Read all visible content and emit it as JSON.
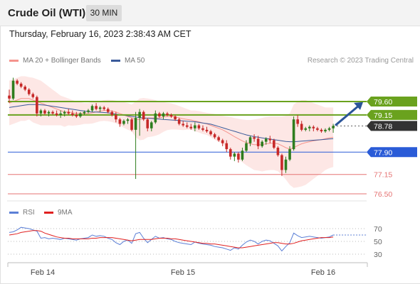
{
  "header": {
    "title": "Crude Oil (WTI)",
    "interval": "30 MIN"
  },
  "timestamp": "Thursday, February 16, 2023 2:38:43 AM CET",
  "credit": "Research © 2023 Trading Central",
  "legend": {
    "main": [
      {
        "label": "MA 20 + Bollinger Bands",
        "color": "#f5948d"
      },
      {
        "label": "MA 50",
        "color": "#3a5a9a"
      }
    ],
    "rsi": [
      {
        "label": "RSI",
        "color": "#5b7fd6"
      },
      {
        "label": "9MA",
        "color": "#e02020"
      }
    ]
  },
  "colors": {
    "up": "#2e7d1e",
    "down": "#c62828",
    "resistance": "#6aa21e",
    "support": "#2a5bd7",
    "target": "#e57373",
    "last": "#333333",
    "arrow": "#2a5499"
  },
  "chart_data": [
    {
      "type": "candlestick",
      "instrument": "Crude Oil (WTI)",
      "interval": "30 MIN",
      "x_ticks": [
        "Feb 14",
        "Feb 15",
        "Feb 16"
      ],
      "ylim": [
        76.3,
        80.0
      ],
      "price_levels": [
        {
          "value": 79.6,
          "label": "79.60",
          "kind": "resistance"
        },
        {
          "value": 79.15,
          "label": "79.15",
          "kind": "resistance"
        },
        {
          "value": 78.78,
          "label": "78.78",
          "kind": "last"
        },
        {
          "value": 77.9,
          "label": "77.90",
          "kind": "support"
        },
        {
          "value": 77.15,
          "label": "77.15",
          "kind": "target"
        },
        {
          "value": 76.5,
          "label": "76.50",
          "kind": "target"
        }
      ],
      "ohlc": [
        [
          79.8,
          80.0,
          79.55,
          79.7
        ],
        [
          79.7,
          80.4,
          79.65,
          80.3
        ],
        [
          80.3,
          80.35,
          80.15,
          80.2
        ],
        [
          80.2,
          80.25,
          80.05,
          80.1
        ],
        [
          80.1,
          80.15,
          79.95,
          80.0
        ],
        [
          80.0,
          80.05,
          79.8,
          79.85
        ],
        [
          79.85,
          79.9,
          79.7,
          79.75
        ],
        [
          79.75,
          79.8,
          79.1,
          79.2
        ],
        [
          79.2,
          79.35,
          79.1,
          79.3
        ],
        [
          79.3,
          79.35,
          79.15,
          79.2
        ],
        [
          79.2,
          79.3,
          79.1,
          79.25
        ],
        [
          79.25,
          79.3,
          79.15,
          79.2
        ],
        [
          79.2,
          79.3,
          79.1,
          79.15
        ],
        [
          79.15,
          79.3,
          79.05,
          79.2
        ],
        [
          79.2,
          79.3,
          79.1,
          79.25
        ],
        [
          79.25,
          79.35,
          79.15,
          79.2
        ],
        [
          79.2,
          79.3,
          79.1,
          79.15
        ],
        [
          79.15,
          79.25,
          79.05,
          79.1
        ],
        [
          79.1,
          79.25,
          79.05,
          79.2
        ],
        [
          79.2,
          79.3,
          79.15,
          79.25
        ],
        [
          79.25,
          79.35,
          79.2,
          79.3
        ],
        [
          79.3,
          79.5,
          79.25,
          79.45
        ],
        [
          79.45,
          79.55,
          79.3,
          79.35
        ],
        [
          79.35,
          79.45,
          79.25,
          79.4
        ],
        [
          79.4,
          79.45,
          79.3,
          79.35
        ],
        [
          79.35,
          79.4,
          79.2,
          79.25
        ],
        [
          79.25,
          79.3,
          79.1,
          79.15
        ],
        [
          79.15,
          79.25,
          78.9,
          79.0
        ],
        [
          79.0,
          79.05,
          78.75,
          78.85
        ],
        [
          78.85,
          79.0,
          78.8,
          78.95
        ],
        [
          78.95,
          79.05,
          78.85,
          79.0
        ],
        [
          79.0,
          79.05,
          78.6,
          78.65
        ],
        [
          78.65,
          79.25,
          77.0,
          79.05
        ],
        [
          79.05,
          79.35,
          78.45,
          79.25
        ],
        [
          79.25,
          79.3,
          78.95,
          79.0
        ],
        [
          79.0,
          79.05,
          78.6,
          78.7
        ],
        [
          78.7,
          78.95,
          78.6,
          78.9
        ],
        [
          78.9,
          79.3,
          78.85,
          79.2
        ],
        [
          79.2,
          79.25,
          79.05,
          79.1
        ],
        [
          79.1,
          79.25,
          79.0,
          79.2
        ],
        [
          79.2,
          79.25,
          79.1,
          79.15
        ],
        [
          79.15,
          79.2,
          79.05,
          79.1
        ],
        [
          79.1,
          79.15,
          78.95,
          79.0
        ],
        [
          79.0,
          79.05,
          78.8,
          78.85
        ],
        [
          78.85,
          78.95,
          78.75,
          78.8
        ],
        [
          78.8,
          78.9,
          78.7,
          78.75
        ],
        [
          78.75,
          78.85,
          78.65,
          78.7
        ],
        [
          78.7,
          78.9,
          78.6,
          78.8
        ],
        [
          78.8,
          78.85,
          78.65,
          78.7
        ],
        [
          78.7,
          78.8,
          78.6,
          78.65
        ],
        [
          78.65,
          78.75,
          78.55,
          78.6
        ],
        [
          78.6,
          78.65,
          78.45,
          78.5
        ],
        [
          78.5,
          78.55,
          78.35,
          78.4
        ],
        [
          78.4,
          78.45,
          78.25,
          78.3
        ],
        [
          78.3,
          78.35,
          78.1,
          78.2
        ],
        [
          78.2,
          78.3,
          77.9,
          78.0
        ],
        [
          78.0,
          78.05,
          77.65,
          77.75
        ],
        [
          77.75,
          77.9,
          77.6,
          77.85
        ],
        [
          77.85,
          77.9,
          77.55,
          77.65
        ],
        [
          77.65,
          78.05,
          77.6,
          77.95
        ],
        [
          77.95,
          78.3,
          77.9,
          78.2
        ],
        [
          78.2,
          78.45,
          78.1,
          78.4
        ],
        [
          78.4,
          78.5,
          78.25,
          78.35
        ],
        [
          78.35,
          78.45,
          78.0,
          78.1
        ],
        [
          78.1,
          78.3,
          78.05,
          78.25
        ],
        [
          78.25,
          78.4,
          78.15,
          78.35
        ],
        [
          78.35,
          78.45,
          78.2,
          78.3
        ],
        [
          78.3,
          78.35,
          78.0,
          78.05
        ],
        [
          78.05,
          78.1,
          77.75,
          77.8
        ],
        [
          77.8,
          77.85,
          77.1,
          77.3
        ],
        [
          77.3,
          77.75,
          77.2,
          77.65
        ],
        [
          77.65,
          78.1,
          77.6,
          78.0
        ],
        [
          78.0,
          79.1,
          77.95,
          79.0
        ],
        [
          79.0,
          79.15,
          78.75,
          78.85
        ],
        [
          78.85,
          78.95,
          78.6,
          78.65
        ],
        [
          78.65,
          78.75,
          78.6,
          78.7
        ],
        [
          78.7,
          78.8,
          78.6,
          78.75
        ],
        [
          78.75,
          78.8,
          78.6,
          78.7
        ],
        [
          78.7,
          78.75,
          78.6,
          78.65
        ],
        [
          78.65,
          78.7,
          78.55,
          78.6
        ],
        [
          78.6,
          78.7,
          78.55,
          78.65
        ],
        [
          78.65,
          78.75,
          78.6,
          78.7
        ],
        [
          78.7,
          78.85,
          78.55,
          78.78
        ]
      ],
      "ma20": [
        79.55,
        79.6,
        79.65,
        79.7,
        79.7,
        79.7,
        79.65,
        79.6,
        79.55,
        79.5,
        79.45,
        79.4,
        79.35,
        79.3,
        79.25,
        79.25,
        79.22,
        79.2,
        79.2,
        79.2,
        79.2,
        79.22,
        79.25,
        79.28,
        79.3,
        79.3,
        79.28,
        79.25,
        79.2,
        79.15,
        79.1,
        79.05,
        79.0,
        79.0,
        79.02,
        79.05,
        79.05,
        79.05,
        79.05,
        79.08,
        79.1,
        79.1,
        79.08,
        79.05,
        79.02,
        79.0,
        78.98,
        78.95,
        78.92,
        78.88,
        78.85,
        78.8,
        78.75,
        78.7,
        78.65,
        78.58,
        78.5,
        78.42,
        78.35,
        78.28,
        78.22,
        78.18,
        78.15,
        78.15,
        78.15,
        78.18,
        78.2,
        78.2,
        78.18,
        78.12,
        78.05,
        78.0,
        78.05,
        78.12,
        78.18,
        78.22,
        78.25,
        78.28,
        78.3,
        78.32,
        78.35,
        78.38,
        78.4
      ],
      "ma50": [
        79.4,
        79.42,
        79.44,
        79.46,
        79.48,
        79.5,
        79.5,
        79.5,
        79.49,
        79.48,
        79.46,
        79.44,
        79.42,
        79.4,
        79.38,
        79.36,
        79.34,
        79.32,
        79.3,
        79.28,
        79.26,
        79.25,
        79.25,
        79.24,
        79.23,
        79.22,
        79.2,
        79.18,
        79.16,
        79.14,
        79.12,
        79.1,
        79.08,
        79.06,
        79.05,
        79.04,
        79.03,
        79.02,
        79.01,
        79.0,
        78.99,
        78.98,
        78.97,
        78.96,
        78.95,
        78.94,
        78.93,
        78.92,
        78.9,
        78.88,
        78.86,
        78.84,
        78.8,
        78.76,
        78.72,
        78.68,
        78.64,
        78.6,
        78.56,
        78.52,
        78.48,
        78.45,
        78.42,
        78.4,
        78.38,
        78.36,
        78.34,
        78.32,
        78.3,
        78.28,
        78.26,
        78.25,
        78.25,
        78.26,
        78.27,
        78.28,
        78.29,
        78.3,
        78.31,
        78.32,
        78.33,
        78.34,
        78.35
      ],
      "bb_upper": [
        80.3,
        80.35,
        80.4,
        80.45,
        80.45,
        80.42,
        80.4,
        80.35,
        80.3,
        80.2,
        80.1,
        80.0,
        79.9,
        79.8,
        79.75,
        79.7,
        79.65,
        79.6,
        79.58,
        79.55,
        79.55,
        79.58,
        79.6,
        79.62,
        79.65,
        79.66,
        79.65,
        79.63,
        79.6,
        79.58,
        79.55,
        79.5,
        79.6,
        79.7,
        79.72,
        79.7,
        79.68,
        79.65,
        79.6,
        79.58,
        79.56,
        79.54,
        79.5,
        79.45,
        79.4,
        79.35,
        79.3,
        79.3,
        79.28,
        79.25,
        79.22,
        79.2,
        79.18,
        79.15,
        79.12,
        79.1,
        79.08,
        79.05,
        79.02,
        79.0,
        78.98,
        78.98,
        79.0,
        79.02,
        79.05,
        79.08,
        79.1,
        79.1,
        79.1,
        79.1,
        79.12,
        79.2,
        79.5,
        79.6,
        79.65,
        79.65,
        79.6,
        79.55,
        79.5,
        79.45,
        79.4,
        79.4,
        79.4
      ],
      "bb_lower": [
        78.8,
        78.85,
        78.9,
        78.95,
        78.95,
        79.0,
        78.9,
        78.85,
        78.8,
        78.8,
        78.8,
        78.8,
        78.8,
        78.8,
        78.75,
        78.8,
        78.79,
        78.8,
        78.82,
        78.85,
        78.85,
        78.86,
        78.9,
        78.94,
        78.95,
        78.94,
        78.91,
        78.87,
        78.8,
        78.72,
        78.65,
        78.6,
        78.4,
        78.3,
        78.32,
        78.4,
        78.42,
        78.45,
        78.5,
        78.58,
        78.64,
        78.66,
        78.66,
        78.65,
        78.64,
        78.65,
        78.66,
        78.6,
        78.56,
        78.51,
        78.48,
        78.4,
        78.32,
        78.25,
        78.18,
        78.06,
        77.92,
        77.79,
        77.68,
        77.56,
        77.46,
        77.38,
        77.3,
        77.28,
        77.25,
        77.28,
        77.3,
        77.3,
        77.26,
        77.14,
        76.98,
        76.8,
        76.7,
        76.72,
        76.75,
        76.8,
        76.9,
        77.0,
        77.1,
        77.19,
        77.3,
        77.36,
        77.4
      ]
    },
    {
      "type": "line",
      "title": "RSI",
      "ylim": [
        20,
        80
      ],
      "y_ticks": [
        30,
        50,
        70
      ],
      "series": [
        {
          "name": "RSI",
          "values": [
            64,
            65,
            68,
            72,
            71,
            70,
            68,
            66,
            55,
            56,
            54,
            55,
            54,
            53,
            55,
            54,
            53,
            52,
            54,
            55,
            56,
            60,
            58,
            59,
            58,
            55,
            53,
            48,
            45,
            50,
            52,
            47,
            62,
            64,
            55,
            48,
            53,
            58,
            55,
            56,
            54,
            53,
            50,
            48,
            47,
            46,
            45,
            49,
            47,
            46,
            45,
            44,
            42,
            41,
            40,
            38,
            36,
            40,
            38,
            44,
            49,
            52,
            50,
            46,
            50,
            52,
            51,
            47,
            43,
            35,
            42,
            48,
            63,
            59,
            56,
            57,
            58,
            57,
            56,
            55,
            56,
            57,
            60
          ]
        },
        {
          "name": "9MA",
          "values": [
            60,
            61,
            62,
            64,
            65,
            66,
            67,
            67,
            66,
            63,
            61,
            59,
            57,
            56,
            55,
            55,
            54,
            54,
            54,
            54,
            54,
            55,
            55,
            56,
            56,
            56,
            56,
            55,
            54,
            53,
            52,
            51,
            52,
            53,
            53,
            53,
            53,
            54,
            55,
            55,
            55,
            54,
            54,
            53,
            52,
            51,
            50,
            49,
            48,
            47,
            47,
            46,
            46,
            45,
            44,
            43,
            42,
            41,
            40,
            40,
            41,
            42,
            43,
            44,
            45,
            46,
            47,
            48,
            48,
            47,
            46,
            46,
            47,
            49,
            51,
            52,
            53,
            54,
            55,
            56,
            56,
            56,
            57
          ]
        }
      ]
    }
  ]
}
